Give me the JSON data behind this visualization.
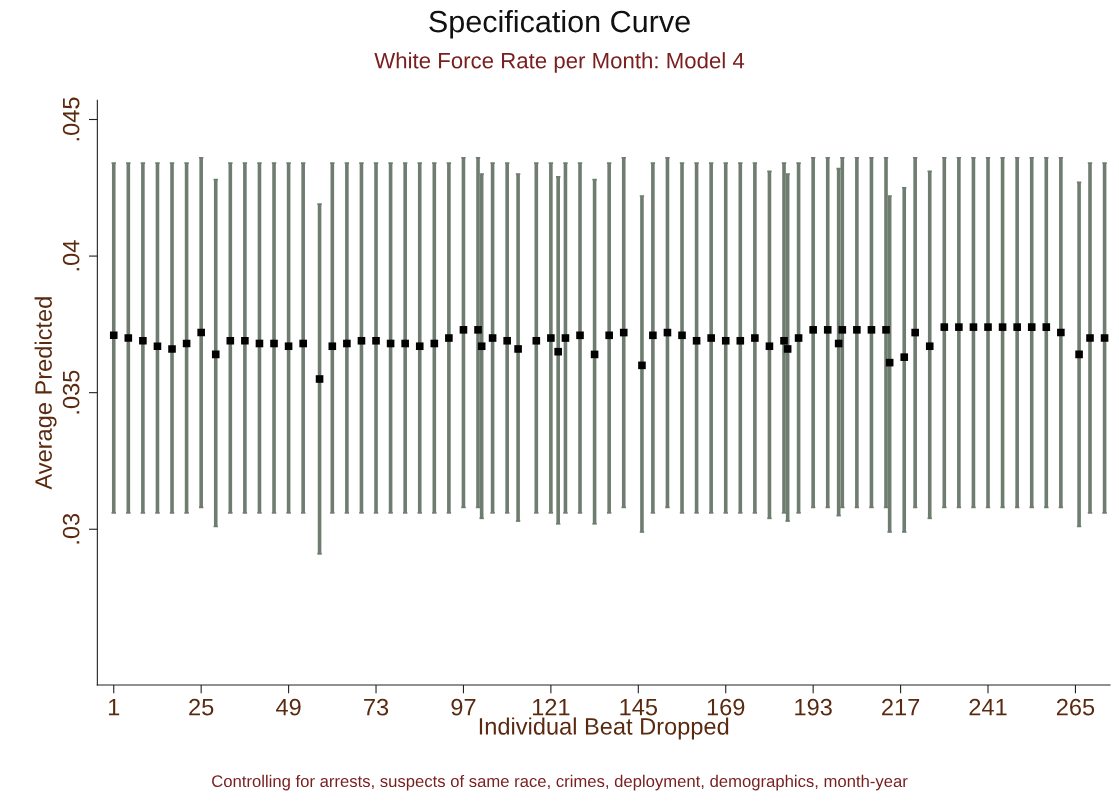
{
  "chart_data": {
    "type": "scatter",
    "title": "Specification Curve",
    "subtitle": "White Force Rate per Month: Model 4",
    "xlabel": "Individual Beat Dropped",
    "ylabel": "Average Predicted",
    "annotations": [
      "Controlling for arrests, suspects of same race, crimes, deployment, demographics, month-year"
    ],
    "marker": "square",
    "x": [
      1,
      5,
      9,
      13,
      17,
      21,
      25,
      29,
      33,
      37,
      41,
      45,
      49,
      53,
      57.5,
      61,
      65,
      69,
      73,
      77,
      81,
      85,
      89,
      93,
      97,
      101,
      102,
      105,
      109,
      112,
      117,
      121,
      123,
      125,
      129,
      133,
      137,
      141,
      146,
      149,
      153,
      157,
      161,
      165,
      169,
      173,
      177,
      181,
      185,
      186,
      189,
      193,
      197,
      200,
      201,
      205,
      209,
      213,
      214,
      218,
      221,
      225,
      229,
      233,
      237,
      241,
      245,
      249,
      253,
      257,
      261,
      266,
      269,
      273
    ],
    "series": [
      {
        "color": "#000000",
        "values": [
          0.0371,
          0.037,
          0.0369,
          0.0367,
          0.0366,
          0.0368,
          0.0372,
          0.0364,
          0.0369,
          0.0369,
          0.0368,
          0.0368,
          0.0367,
          0.0368,
          0.0355,
          0.0367,
          0.0368,
          0.0369,
          0.0369,
          0.0368,
          0.0368,
          0.0367,
          0.0368,
          0.037,
          0.0373,
          0.0373,
          0.0367,
          0.037,
          0.0369,
          0.0366,
          0.0369,
          0.037,
          0.0365,
          0.037,
          0.0371,
          0.0364,
          0.0371,
          0.0372,
          0.036,
          0.0371,
          0.0372,
          0.0371,
          0.0369,
          0.037,
          0.0369,
          0.0369,
          0.037,
          0.0367,
          0.0369,
          0.0366,
          0.037,
          0.0373,
          0.0373,
          0.0368,
          0.0373,
          0.0373,
          0.0373,
          0.0373,
          0.0361,
          0.0363,
          0.0372,
          0.0367,
          0.0374,
          0.0374,
          0.0374,
          0.0374,
          0.0374,
          0.0374,
          0.0374,
          0.0374,
          0.0372,
          0.0364,
          0.037,
          0.037
        ],
        "errors": [
          [
            0.0306,
            0.0434
          ],
          [
            0.0306,
            0.0434
          ],
          [
            0.0306,
            0.0434
          ],
          [
            0.0306,
            0.0434
          ],
          [
            0.0306,
            0.0434
          ],
          [
            0.0306,
            0.0434
          ],
          [
            0.0308,
            0.0436
          ],
          [
            0.0301,
            0.0428
          ],
          [
            0.0306,
            0.0434
          ],
          [
            0.0306,
            0.0434
          ],
          [
            0.0306,
            0.0434
          ],
          [
            0.0306,
            0.0434
          ],
          [
            0.0306,
            0.0434
          ],
          [
            0.0306,
            0.0434
          ],
          [
            0.0291,
            0.0419
          ],
          [
            0.0306,
            0.0434
          ],
          [
            0.0306,
            0.0434
          ],
          [
            0.0306,
            0.0434
          ],
          [
            0.0306,
            0.0434
          ],
          [
            0.0306,
            0.0434
          ],
          [
            0.0306,
            0.0434
          ],
          [
            0.0306,
            0.0434
          ],
          [
            0.0306,
            0.0434
          ],
          [
            0.0306,
            0.0434
          ],
          [
            0.0308,
            0.0436
          ],
          [
            0.0308,
            0.0436
          ],
          [
            0.0304,
            0.043
          ],
          [
            0.0306,
            0.0434
          ],
          [
            0.0306,
            0.0434
          ],
          [
            0.0303,
            0.043
          ],
          [
            0.0306,
            0.0434
          ],
          [
            0.0306,
            0.0434
          ],
          [
            0.0302,
            0.0429
          ],
          [
            0.0306,
            0.0434
          ],
          [
            0.0306,
            0.0434
          ],
          [
            0.0302,
            0.0428
          ],
          [
            0.0306,
            0.0434
          ],
          [
            0.0308,
            0.0436
          ],
          [
            0.0299,
            0.0422
          ],
          [
            0.0306,
            0.0434
          ],
          [
            0.0308,
            0.0436
          ],
          [
            0.0306,
            0.0434
          ],
          [
            0.0306,
            0.0434
          ],
          [
            0.0306,
            0.0434
          ],
          [
            0.0306,
            0.0434
          ],
          [
            0.0306,
            0.0434
          ],
          [
            0.0306,
            0.0434
          ],
          [
            0.0304,
            0.0431
          ],
          [
            0.0306,
            0.0434
          ],
          [
            0.0303,
            0.043
          ],
          [
            0.0306,
            0.0434
          ],
          [
            0.0308,
            0.0436
          ],
          [
            0.0308,
            0.0436
          ],
          [
            0.0305,
            0.0432
          ],
          [
            0.0308,
            0.0436
          ],
          [
            0.0308,
            0.0436
          ],
          [
            0.0308,
            0.0436
          ],
          [
            0.0308,
            0.0436
          ],
          [
            0.0299,
            0.0422
          ],
          [
            0.0299,
            0.0425
          ],
          [
            0.0308,
            0.0436
          ],
          [
            0.0304,
            0.0431
          ],
          [
            0.0308,
            0.0436
          ],
          [
            0.0308,
            0.0436
          ],
          [
            0.0308,
            0.0436
          ],
          [
            0.0308,
            0.0436
          ],
          [
            0.0308,
            0.0436
          ],
          [
            0.0308,
            0.0436
          ],
          [
            0.0308,
            0.0436
          ],
          [
            0.0308,
            0.0436
          ],
          [
            0.0308,
            0.0436
          ],
          [
            0.0301,
            0.0427
          ],
          [
            0.0306,
            0.0434
          ],
          [
            0.0306,
            0.0434
          ]
        ]
      }
    ],
    "xlim": [
      -3.5,
      274.5
    ],
    "xticks": [
      1,
      25,
      49,
      73,
      97,
      121,
      145,
      169,
      193,
      217,
      241,
      265
    ],
    "ylim": [
      0.0243,
      0.0457
    ],
    "yticks": [
      {
        "value": 0.03,
        "label": ".03"
      },
      {
        "value": 0.035,
        "label": ".035"
      },
      {
        "value": 0.04,
        "label": ".04"
      },
      {
        "value": 0.045,
        "label": ".045"
      }
    ]
  }
}
